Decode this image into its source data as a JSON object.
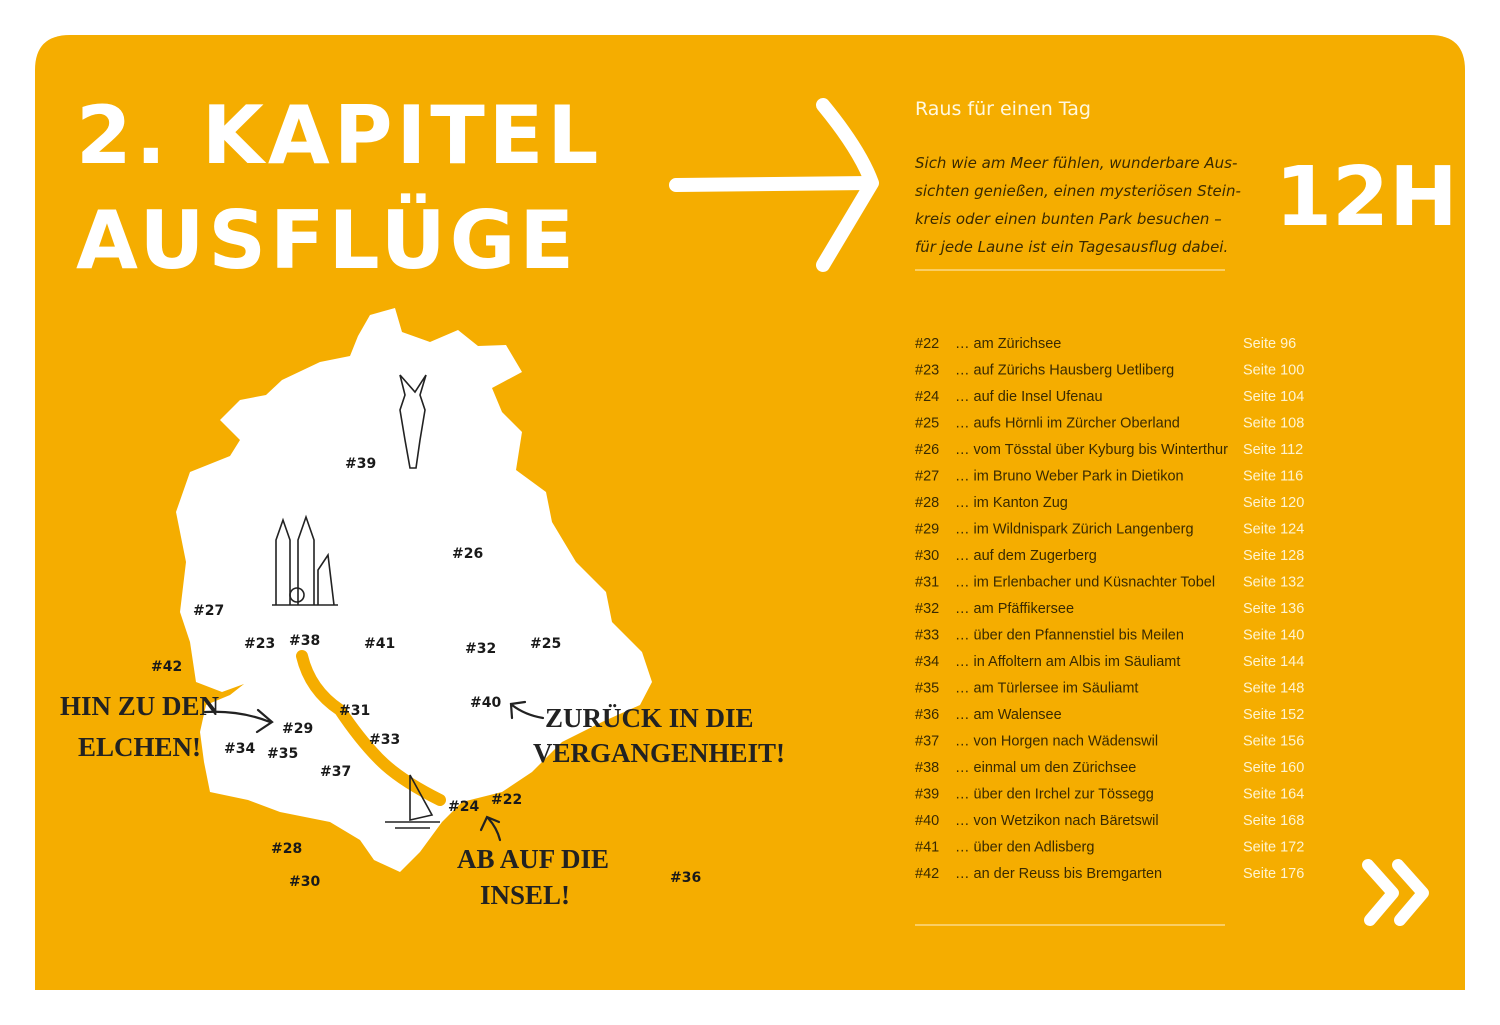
{
  "heading": {
    "lines": [
      "2. KAPITEL",
      "AUSFLÜGE"
    ]
  },
  "subtitle": "Raus für einen Tag",
  "intro": {
    "lines": [
      "Sich wie am Meer fühlen, wunderbare Aus-",
      "sichten genießen, einen mysteriösen Stein-",
      "kreis oder einen bunten Park besuchen –",
      "für jede Laune ist ein Tagesausflug dabei."
    ]
  },
  "duration": "12H",
  "entries": [
    {
      "id": "#22",
      "title": "… am Zürichsee",
      "page": "Seite  96"
    },
    {
      "id": "#23",
      "title": "… auf Zürichs Hausberg Uetliberg",
      "page": "Seite 100"
    },
    {
      "id": "#24",
      "title": "… auf die Insel Ufenau",
      "page": "Seite 104"
    },
    {
      "id": "#25",
      "title": "… aufs Hörnli im Zürcher Oberland",
      "page": "Seite 108"
    },
    {
      "id": "#26",
      "title": "… vom Tösstal über Kyburg bis Winterthur",
      "page": "Seite 112"
    },
    {
      "id": "#27",
      "title": "… im Bruno Weber Park in Dietikon",
      "page": "Seite 116"
    },
    {
      "id": "#28",
      "title": "… im Kanton Zug",
      "page": "Seite 120"
    },
    {
      "id": "#29",
      "title": "… im Wildnispark Zürich Langenberg",
      "page": "Seite 124"
    },
    {
      "id": "#30",
      "title": "… auf dem Zugerberg",
      "page": "Seite 128"
    },
    {
      "id": "#31",
      "title": "… im Erlenbacher und Küsnachter Tobel",
      "page": "Seite 132"
    },
    {
      "id": "#32",
      "title": "… am Pfäffikersee",
      "page": "Seite 136"
    },
    {
      "id": "#33",
      "title": "… über den Pfannenstiel bis Meilen",
      "page": "Seite 140"
    },
    {
      "id": "#34",
      "title": "… in Affoltern am Albis im Säuliamt",
      "page": "Seite 144"
    },
    {
      "id": "#35",
      "title": "… am Türlersee im Säuliamt",
      "page": "Seite 148"
    },
    {
      "id": "#36",
      "title": "… am Walensee",
      "page": "Seite 152"
    },
    {
      "id": "#37",
      "title": "… von Horgen nach Wädenswil",
      "page": "Seite 156"
    },
    {
      "id": "#38",
      "title": "… einmal um den Zürichsee",
      "page": "Seite 160"
    },
    {
      "id": "#39",
      "title": "… über den Irchel zur Tössegg",
      "page": "Seite 164"
    },
    {
      "id": "#40",
      "title": "… von Wetzikon nach Bäretswil",
      "page": "Seite 168"
    },
    {
      "id": "#41",
      "title": "… über den Adlisberg",
      "page": "Seite 172"
    },
    {
      "id": "#42",
      "title": "… an der Reuss bis Bremgarten",
      "page": "Seite 176"
    }
  ],
  "map": {
    "labels": [
      "#39",
      "#26",
      "#27",
      "#23",
      "#38",
      "#41",
      "#32",
      "#25",
      "#42",
      "#40",
      "#31",
      "#29",
      "#34",
      "#35",
      "#33",
      "#37",
      "#24",
      "#22",
      "#28",
      "#30",
      "#36"
    ]
  },
  "annotations": [
    {
      "lines": [
        "HIN ZU DEN",
        "ELCHEN!"
      ]
    },
    {
      "lines": [
        "ZURÜCK IN DIE",
        "VERGANGENHEIT!"
      ]
    },
    {
      "lines": [
        "AB AUF DIE",
        "INSEL!"
      ]
    }
  ]
}
